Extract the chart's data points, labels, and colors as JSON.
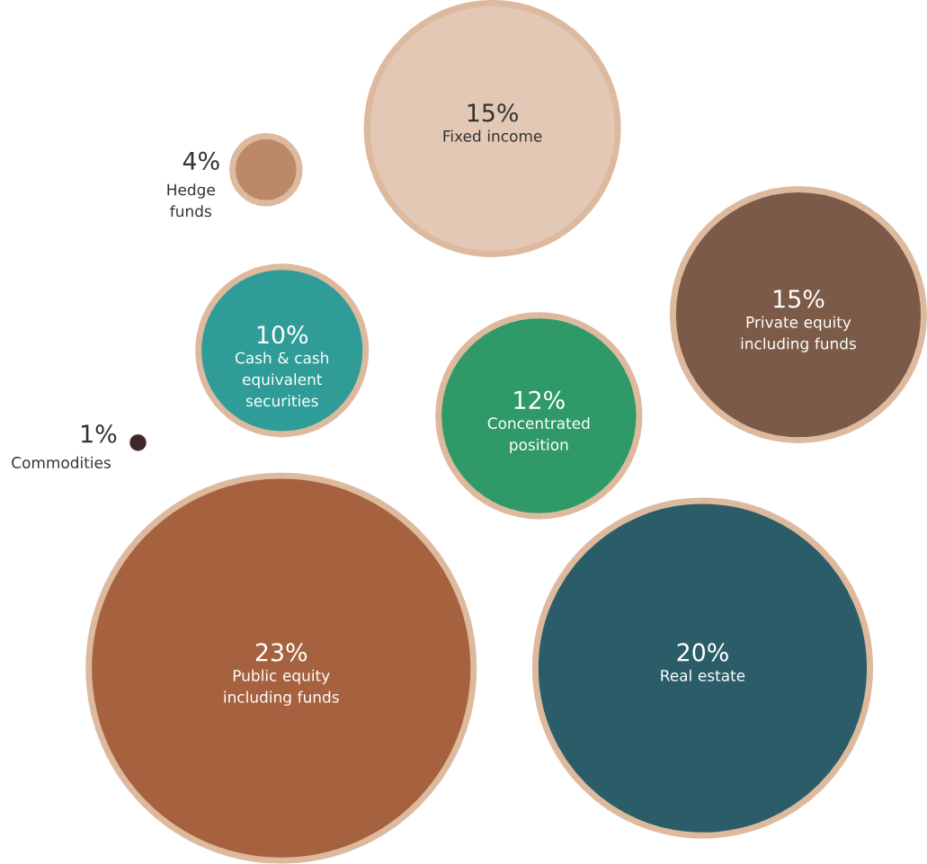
{
  "chart_data": {
    "type": "other",
    "categories": [
      "Fixed income",
      "Hedge funds",
      "Cash & cash equivalent securities",
      "Private equity including funds",
      "Concentrated position",
      "Commodities",
      "Public equity including funds",
      "Real estate"
    ],
    "values": [
      15,
      4,
      10,
      15,
      12,
      1,
      23,
      20
    ],
    "value_labels": [
      "15%",
      "4%",
      "10%",
      "15%",
      "12%",
      "1%",
      "23%",
      "20%"
    ],
    "colors": [
      "#e3c8b6",
      "#bb8868",
      "#2f9c98",
      "#7b5b48",
      "#2f9a68",
      "#3e2828",
      "#a6623e",
      "#2b5d69"
    ]
  }
}
